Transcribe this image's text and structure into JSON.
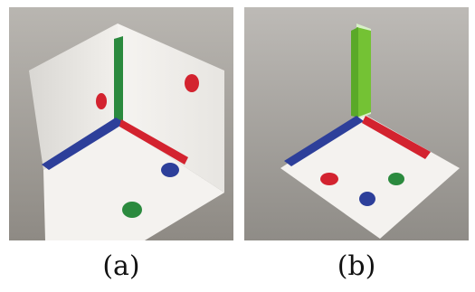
{
  "figure": {
    "panels": [
      {
        "id": "a",
        "caption": "(a)",
        "description_icon": "three-plane-corner-photo"
      },
      {
        "id": "b",
        "caption": "(b)",
        "description_icon": "post-on-plane-photo"
      }
    ]
  },
  "colors": {
    "background_a": "#9b9690",
    "background_b": "#9d9a95",
    "paper": "#f3f1ee",
    "red": "#d3232f",
    "blue": "#2d3f9a",
    "green": "#2b8a3e",
    "lime_green": "#74c234"
  }
}
